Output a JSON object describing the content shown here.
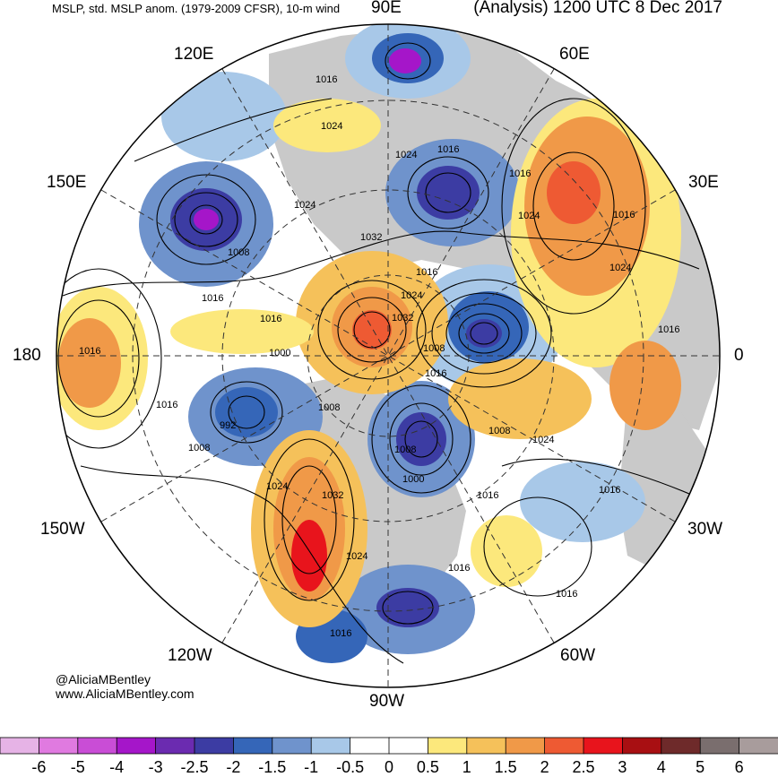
{
  "header": {
    "left_title": "MSLP, std. MSLP anom. (1979-2009 CFSR), 10-m wind",
    "right_title": "(Analysis) 1200 UTC 8 Dec 2017"
  },
  "longitude_labels": {
    "e90": "90E",
    "e60": "60E",
    "e30": "30E",
    "zero": "0",
    "w30": "30W",
    "w60": "60W",
    "w90": "90W",
    "w120": "120W",
    "w150": "150W",
    "d180": "180",
    "e150": "150E",
    "e120": "120E"
  },
  "credits": {
    "handle": "@AliciaMBentley",
    "website": "www.AliciaMBentley.com"
  },
  "pressure_labels": [
    "1016",
    "1024",
    "1016",
    "1024",
    "1016",
    "1024",
    "1016",
    "1032",
    "1016",
    "1024",
    "1008",
    "1016",
    "1024",
    "1016",
    "1032",
    "1008",
    "1016",
    "1024",
    "1016",
    "1000",
    "1016",
    "1008",
    "1016",
    "1008",
    "1024",
    "992",
    "1008",
    "1024",
    "1032",
    "1008",
    "1000",
    "1016",
    "1016",
    "1024",
    "1016",
    "1016",
    "1016"
  ],
  "colorbar": {
    "values": [
      "-6",
      "-5",
      "-4",
      "-3",
      "-2.5",
      "-2",
      "-1.5",
      "-1",
      "-0.5",
      "0",
      "0.5",
      "1",
      "1.5",
      "2",
      "2.5",
      "3",
      "4",
      "5",
      "6"
    ],
    "colors": [
      "#e6b3e6",
      "#e07ae0",
      "#c94dd6",
      "#a516c9",
      "#6b2bb0",
      "#3c3ca3",
      "#3566b8",
      "#6f93cc",
      "#a8c8e8",
      "#ffffff",
      "#ffffff",
      "#fce87c",
      "#f5c15a",
      "#f09948",
      "#ee5a33",
      "#e8141c",
      "#a80f12",
      "#6e2a2a",
      "#7a6e6e",
      "#a89c9c"
    ]
  },
  "map_colors": {
    "neg1": "#a8c8e8",
    "neg15": "#6f93cc",
    "neg2": "#3566b8",
    "neg25": "#3c3ca3",
    "neg3": "#6b2bb0",
    "neg4": "#a516c9",
    "neg5": "#c94dd6",
    "pos1": "#fce87c",
    "pos15": "#f5c15a",
    "pos2": "#f09948",
    "pos25": "#ee5a33",
    "pos3": "#e8141c",
    "land": "#c9c9c9"
  }
}
